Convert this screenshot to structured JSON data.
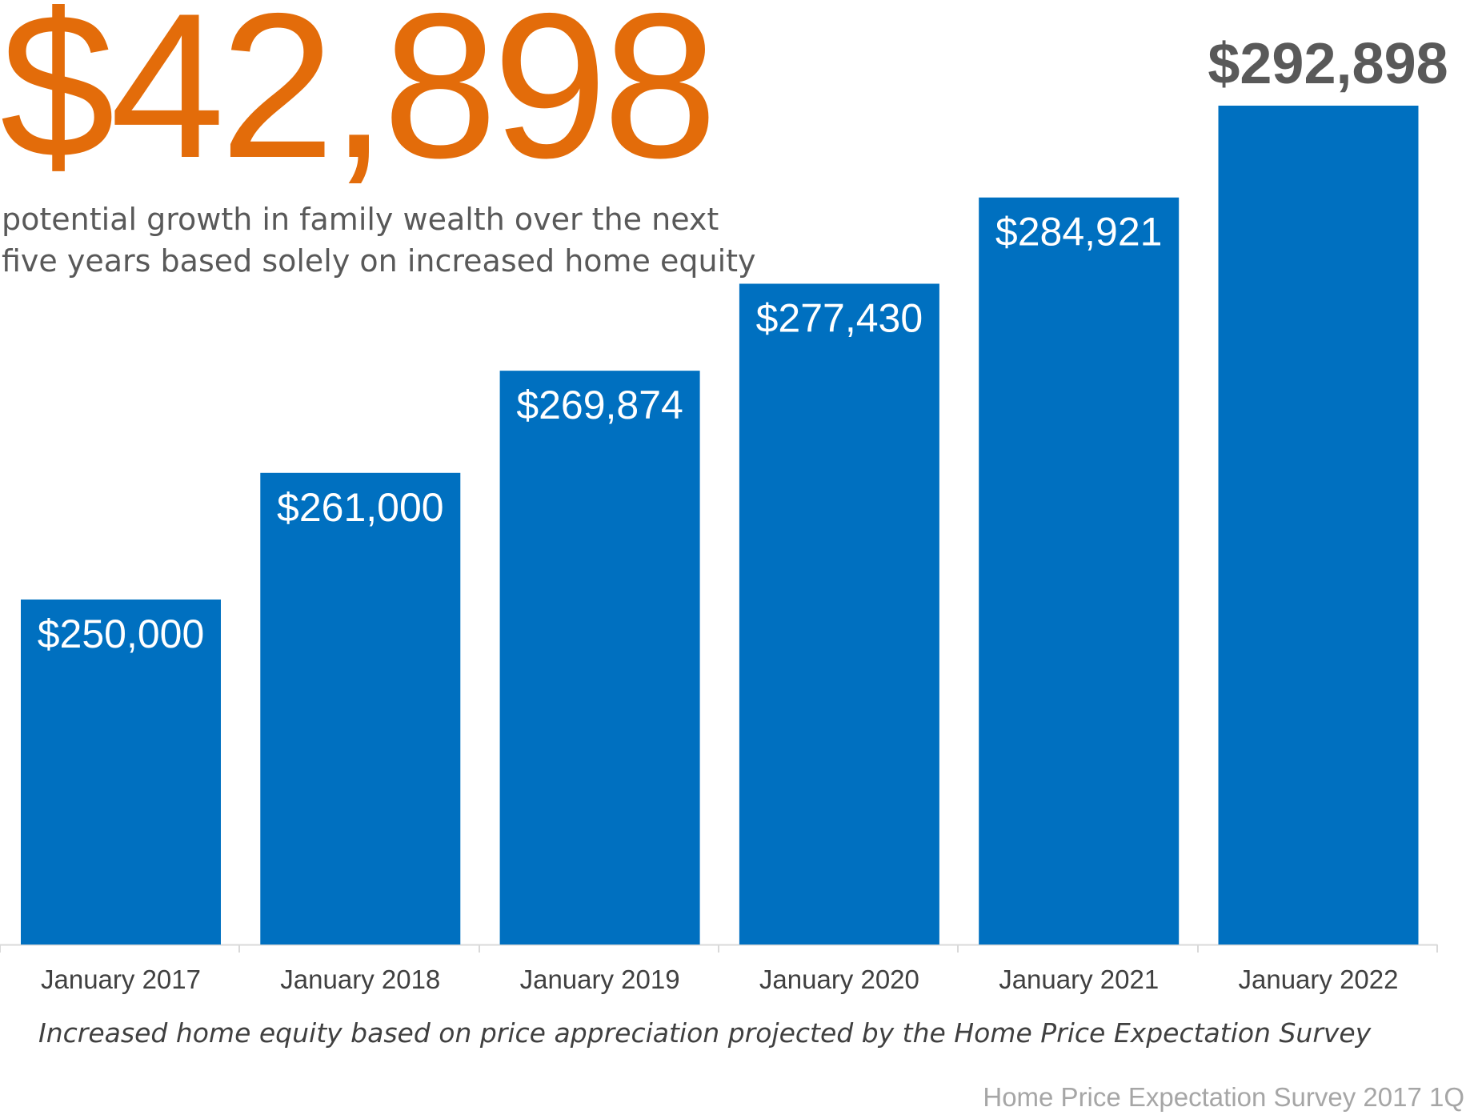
{
  "headline": {
    "value": "$42,898",
    "color": "#E36C0A"
  },
  "subtitle": {
    "line1": "potential growth in family wealth over the next",
    "line2": "five years based solely on increased home equity"
  },
  "footnote": "Increased home equity based on price appreciation projected by the Home Price Expectation Survey",
  "source": "Home Price Expectation Survey 2017 1Q",
  "chart_data": {
    "type": "bar",
    "categories": [
      "January 2017",
      "January 2018",
      "January 2019",
      "January 2020",
      "January 2021",
      "January 2022"
    ],
    "values": [
      250000,
      261000,
      269874,
      277430,
      284921,
      292898
    ],
    "labels": [
      "$250,000",
      "$261,000",
      "$269,874",
      "$277,430",
      "$284,921",
      "$292,898"
    ],
    "title": "",
    "xlabel": "",
    "ylabel": "",
    "grid": false,
    "legend": "none",
    "bar_color": "#0070C0",
    "inside_label_color": "#FFFFFF",
    "top_label_color": "#595959",
    "axis_color": "#D9D9D9",
    "category_label_color": "#404040"
  }
}
